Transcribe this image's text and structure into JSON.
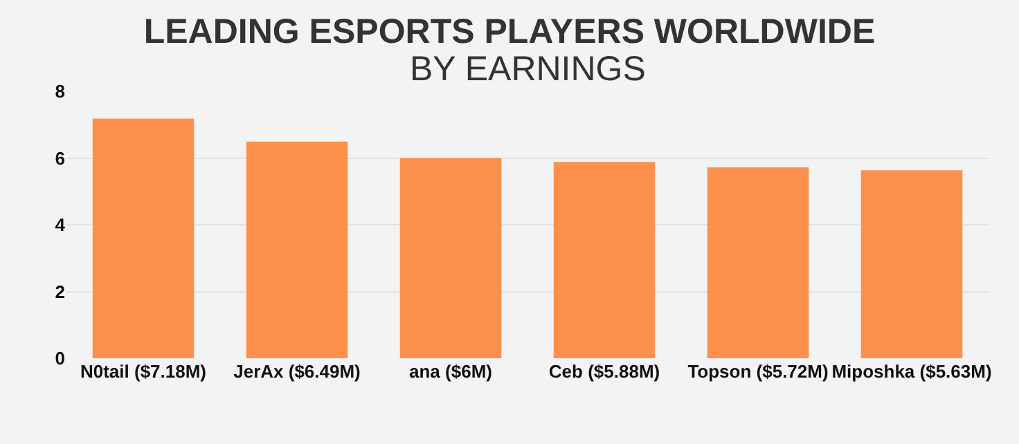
{
  "chart_data": {
    "type": "bar",
    "title": "LEADING ESPORTS PLAYERS WORLDWIDE",
    "subtitle": "BY EARNINGS",
    "categories": [
      "N0tail ($7.18M)",
      "JerAx ($6.49M)",
      "ana ($6M)",
      "Ceb ($5.88M)",
      "Topson ($5.72M)",
      "Miposhka ($5.63M)"
    ],
    "values": [
      7.18,
      6.49,
      6,
      5.88,
      5.72,
      5.63
    ],
    "color": "#fc904c",
    "ylim": [
      0,
      8
    ],
    "yticks": [
      0,
      2,
      4,
      6,
      8
    ],
    "grid": "y"
  }
}
